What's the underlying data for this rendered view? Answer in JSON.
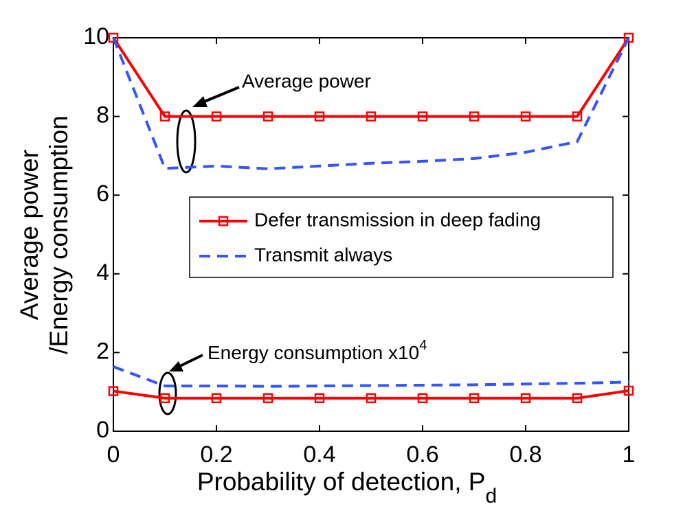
{
  "chart_data": {
    "type": "line",
    "xlabel": "Probability of detection, P",
    "xlabel_sub": "d",
    "ylabel": [
      "Average power",
      "/Energy consumption"
    ],
    "x": [
      0,
      0.1,
      0.2,
      0.3,
      0.4,
      0.5,
      0.6,
      0.7,
      0.8,
      0.9,
      1
    ],
    "series": [
      {
        "name": "Defer transmission in deep fading",
        "color": "#ff0000",
        "marker": "square",
        "dash": false,
        "values": [
          10,
          8,
          8,
          8,
          8,
          8,
          8,
          8,
          8,
          8,
          10
        ]
      },
      {
        "name": "Transmit always",
        "color": "#3355ff",
        "marker": "none",
        "dash": true,
        "values": [
          10,
          6.68,
          6.74,
          6.67,
          6.74,
          6.81,
          6.86,
          6.93,
          7.09,
          7.36,
          10
        ]
      },
      {
        "color": "#ff0000",
        "marker": "square",
        "dash": false,
        "values": [
          1.02,
          0.84,
          0.84,
          0.84,
          0.84,
          0.84,
          0.84,
          0.84,
          0.84,
          0.84,
          1.03
        ]
      },
      {
        "color": "#3355ff",
        "marker": "none",
        "dash": true,
        "values": [
          1.64,
          1.15,
          1.15,
          1.14,
          1.15,
          1.16,
          1.17,
          1.18,
          1.2,
          1.22,
          1.25
        ]
      }
    ],
    "xlim": [
      0,
      1
    ],
    "xticks": [
      0,
      0.2,
      0.4,
      0.6,
      0.8,
      1
    ],
    "ylim": [
      0,
      10
    ],
    "yticks": [
      0,
      2,
      4,
      6,
      8,
      10
    ],
    "grid": false,
    "legend": "center right",
    "annotations": [
      {
        "text": "Average power"
      },
      {
        "text": "Energy consumption x10",
        "sup": "4"
      }
    ]
  }
}
